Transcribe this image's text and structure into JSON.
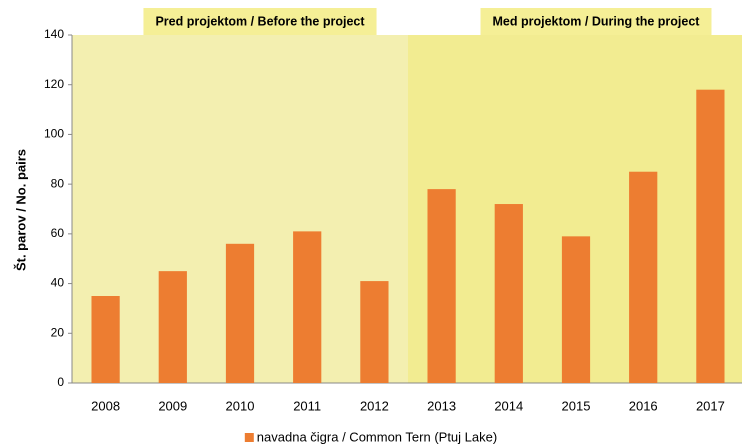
{
  "chart_data": {
    "type": "bar",
    "y_label": "Št. parov / No. pairs",
    "categories": [
      "2008",
      "2009",
      "2010",
      "2011",
      "2012",
      "2013",
      "2014",
      "2015",
      "2016",
      "2017"
    ],
    "series": [
      {
        "name": "navadna čigra / Common Tern (Ptuj Lake)",
        "color": "#ed7d31",
        "values": [
          35,
          45,
          56,
          61,
          41,
          78,
          72,
          59,
          85,
          118
        ]
      }
    ],
    "ylim": [
      0,
      140
    ],
    "yticks": [
      0,
      20,
      40,
      60,
      80,
      100,
      120,
      140
    ],
    "regions": [
      {
        "label": "Pred projektom / Before the project",
        "from": "2008",
        "to": "2012",
        "color": "#f3efb0",
        "label_color": "#f5ef96"
      },
      {
        "label": "Med projektom / During the project",
        "from": "2013",
        "to": "2017",
        "color": "#f2ec91",
        "label_color": "#f5ef96"
      }
    ],
    "legend": "bottom"
  }
}
